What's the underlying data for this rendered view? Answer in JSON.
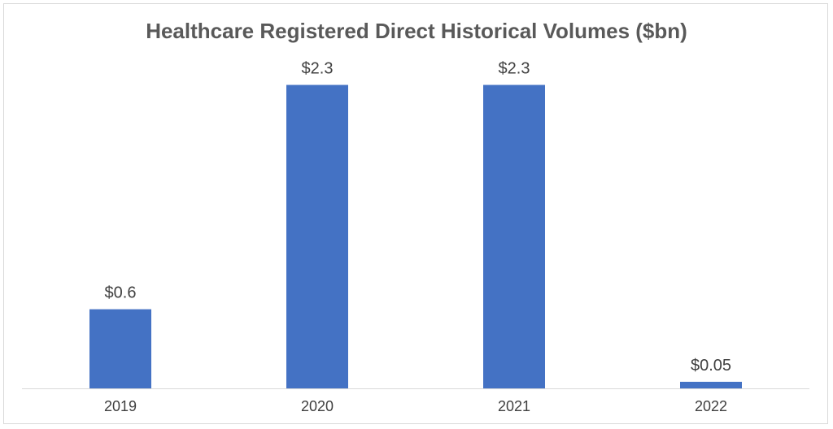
{
  "chart_data": {
    "type": "bar",
    "title": "Healthcare Registered Direct Historical Volumes ($bn)",
    "xlabel": "",
    "ylabel": "",
    "categories": [
      "2019",
      "2020",
      "2021",
      "2022"
    ],
    "values": [
      0.6,
      2.3,
      2.3,
      0.05
    ],
    "data_labels": [
      "$0.6",
      "$2.3",
      "$2.3",
      "$0.05"
    ],
    "ylim": [
      0,
      2.5
    ],
    "grid": false,
    "legend": "none",
    "bar_color": "#4472C4",
    "axis_color": "#d9d9d9"
  }
}
